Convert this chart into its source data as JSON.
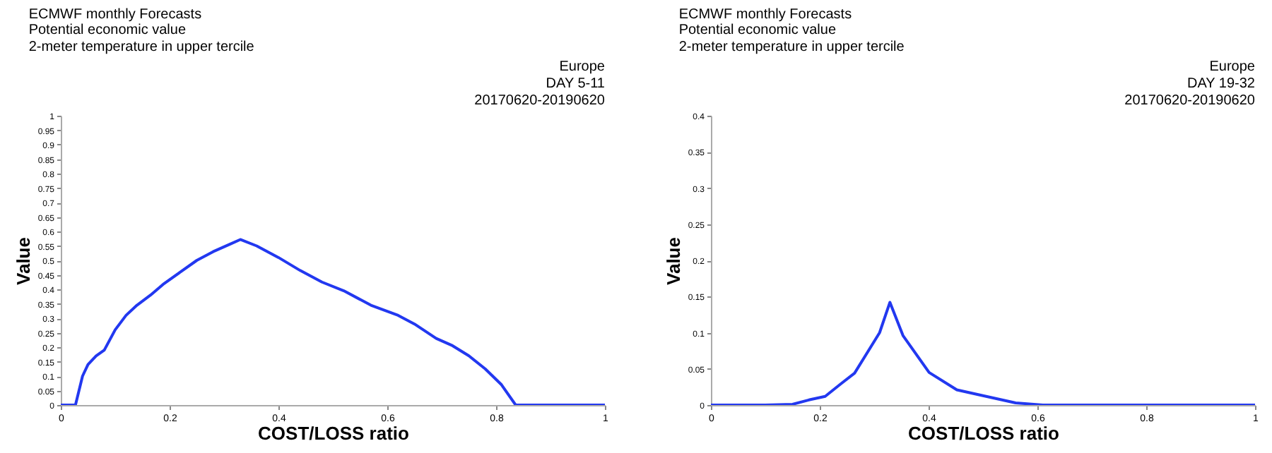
{
  "chart_data": [
    {
      "type": "line",
      "title": "ECMWF monthly Forecasts",
      "subtitle": [
        "Potential economic value",
        "2-meter temperature in upper tercile"
      ],
      "annotations": [
        "Europe",
        "DAY 5-11",
        "20170620-20190620"
      ],
      "xlabel": "COST/LOSS ratio",
      "ylabel": "Value",
      "xlim": [
        0,
        1
      ],
      "xticks": [
        0,
        0.2,
        0.4,
        0.6,
        0.8,
        1
      ],
      "ylim": [
        0,
        1
      ],
      "yticks": [
        0,
        0.05,
        0.1,
        0.15,
        0.2,
        0.25,
        0.3,
        0.35,
        0.4,
        0.45,
        0.5,
        0.55,
        0.6,
        0.65,
        0.7,
        0.75,
        0.8,
        0.85,
        0.9,
        0.95,
        1
      ],
      "grid": false,
      "series": [
        {
          "color": "#2238f0",
          "x": [
            0,
            0.027,
            0.04,
            0.05,
            0.065,
            0.08,
            0.1,
            0.12,
            0.14,
            0.165,
            0.19,
            0.22,
            0.25,
            0.28,
            0.31,
            0.33,
            0.36,
            0.4,
            0.44,
            0.48,
            0.52,
            0.57,
            0.62,
            0.65,
            0.69,
            0.72,
            0.75,
            0.78,
            0.81,
            0.836,
            1
          ],
          "values": [
            0,
            0,
            0.1,
            0.14,
            0.17,
            0.19,
            0.26,
            0.31,
            0.345,
            0.38,
            0.42,
            0.46,
            0.5,
            0.53,
            0.555,
            0.572,
            0.55,
            0.51,
            0.465,
            0.425,
            0.395,
            0.345,
            0.31,
            0.28,
            0.23,
            0.205,
            0.17,
            0.125,
            0.07,
            0,
            0
          ]
        }
      ]
    },
    {
      "type": "line",
      "title": "ECMWF monthly Forecasts",
      "subtitle": [
        "Potential economic value",
        "2-meter temperature in upper tercile"
      ],
      "annotations": [
        "Europe",
        "DAY 19-32",
        "20170620-20190620"
      ],
      "xlabel": "COST/LOSS ratio",
      "ylabel": "Value",
      "xlim": [
        0,
        1
      ],
      "xticks": [
        0,
        0.2,
        0.4,
        0.6,
        0.8,
        1
      ],
      "ylim": [
        0,
        0.4
      ],
      "yticks": [
        0,
        0.05,
        0.1,
        0.15,
        0.2,
        0.25,
        0.3,
        0.35,
        0.4
      ],
      "grid": false,
      "series": [
        {
          "color": "#2238f0",
          "x": [
            0,
            0.1,
            0.15,
            0.18,
            0.21,
            0.24,
            0.264,
            0.31,
            0.329,
            0.353,
            0.401,
            0.452,
            0.5,
            0.56,
            0.61,
            1
          ],
          "values": [
            0,
            0,
            0.001,
            0.007,
            0.012,
            0.03,
            0.044,
            0.1,
            0.142,
            0.096,
            0.045,
            0.021,
            0.013,
            0.003,
            0,
            0
          ]
        }
      ]
    }
  ]
}
